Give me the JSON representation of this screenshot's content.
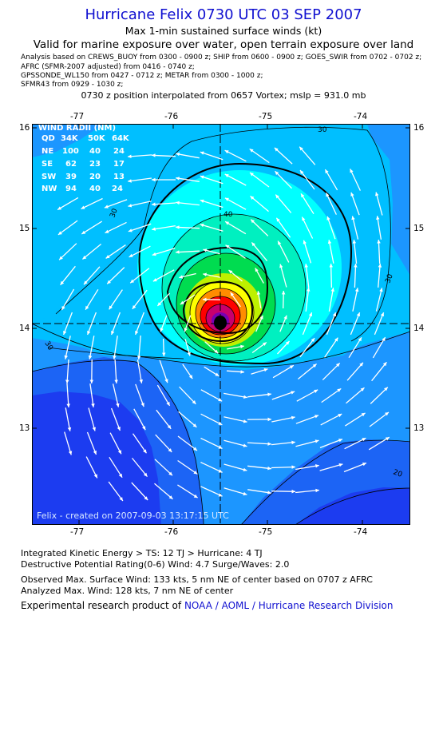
{
  "header": {
    "title": "Hurricane Felix 0730 UTC 03 SEP 2007",
    "subtitle": "Max 1-min sustained surface winds (kt)",
    "valid": "Valid for marine exposure over water, open terrain exposure over land",
    "analysis_lines": [
      "Analysis based on  CREWS_BUOY from 0300 - 0900 z;  SHIP from 0600 - 0900 z;  GOES_SWIR from 0702 - 0702 z;",
      "AFRC (SFMR-2007 adjusted) from 0416 - 0740 z;",
      "GPSSONDE_WL150 from 0427 - 0712 z;  METAR from 0300 - 1000 z;",
      "SFMR43 from 0929 - 1030 z;"
    ],
    "position": "0730 z position interpolated from 0657 Vortex; mslp = 931.0 mb"
  },
  "map": {
    "lon_ticks": [
      "-77",
      "-76",
      "-75",
      "-74"
    ],
    "lat_ticks": [
      "16",
      "15",
      "14",
      "13"
    ],
    "contour_labels": [
      "30",
      "30",
      "30",
      "40",
      "30",
      "20"
    ],
    "credit_overlay": "Felix - created on 2007-09-03 13:17:15 UTC",
    "wind_radii": {
      "title": "WIND RADII (NM)",
      "header": [
        "QD",
        "34K",
        "50K",
        "64K"
      ],
      "rows": [
        [
          "NE",
          "100",
          "40",
          "24"
        ],
        [
          "SE",
          "62",
          "23",
          "17"
        ],
        [
          "SW",
          "39",
          "20",
          "13"
        ],
        [
          "NW",
          "94",
          "40",
          "24"
        ]
      ]
    },
    "colors": {
      "deep_blue": "#1c3cf0",
      "blue": "#1c64f5",
      "azure": "#1c96ff",
      "sky": "#00bfff",
      "cyan": "#00ffff",
      "aqua": "#00f0c0",
      "green": "#00dc50",
      "lime": "#bef000",
      "yellow": "#ffff00",
      "orange": "#ff8c00",
      "red": "#ff0000",
      "magenta": "#c8006e",
      "purple": "#7800b4"
    }
  },
  "footer": {
    "ike": "Integrated Kinetic Energy > TS: 12 TJ   > Hurricane: 4 TJ",
    "dpr": "Destructive Potential Rating(0-6)   Wind: 4.7 Surge/Waves: 2.0",
    "observed": "Observed Max. Surface Wind: 133 kts, 5 nm NE of center based on 0707 z AFRC",
    "analyzed": "Analyzed Max. Wind: 128 kts, 7 nm NE of center",
    "credit_prefix": "Experimental research product of",
    "credit_org": "NOAA / AOML / Hurricane Research Division"
  }
}
